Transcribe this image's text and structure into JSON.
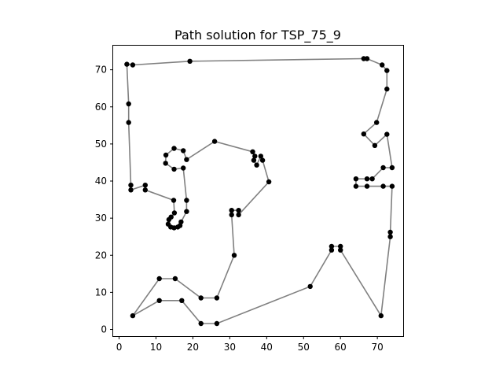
{
  "chart_data": {
    "type": "scatter",
    "title": "Path solution for TSP_75_9",
    "xlabel": "",
    "ylabel": "",
    "xlim": [
      -1.6,
      77.0
    ],
    "ylim": [
      -1.8,
      76.5
    ],
    "x_ticks": [
      0,
      10,
      20,
      30,
      40,
      50,
      60,
      70
    ],
    "y_ticks": [
      0,
      10,
      20,
      30,
      40,
      50,
      60,
      70
    ],
    "grid": false,
    "legend": "none",
    "colors": {
      "path": "#808080",
      "points": "#000000"
    },
    "path": [
      [
        19.2,
        72.3
      ],
      [
        66.3,
        73.0
      ],
      [
        67.2,
        73.0
      ],
      [
        71.3,
        71.3
      ],
      [
        72.6,
        69.8
      ],
      [
        72.6,
        64.8
      ],
      [
        69.8,
        55.8
      ],
      [
        66.3,
        52.7
      ],
      [
        69.3,
        49.6
      ],
      [
        72.6,
        52.6
      ],
      [
        74.0,
        43.6
      ],
      [
        71.6,
        43.6
      ],
      [
        68.6,
        40.6
      ],
      [
        67.2,
        40.6
      ],
      [
        64.2,
        40.6
      ],
      [
        64.2,
        38.6
      ],
      [
        67.2,
        38.6
      ],
      [
        71.6,
        38.6
      ],
      [
        74.0,
        38.6
      ],
      [
        73.5,
        26.2
      ],
      [
        73.5,
        25.0
      ],
      [
        71.0,
        3.7
      ],
      [
        60.0,
        21.4
      ],
      [
        60.0,
        22.4
      ],
      [
        57.6,
        22.4
      ],
      [
        57.6,
        21.4
      ],
      [
        51.8,
        11.6
      ],
      [
        26.5,
        1.6
      ],
      [
        22.2,
        1.6
      ],
      [
        17.0,
        7.8
      ],
      [
        10.9,
        7.8
      ],
      [
        3.7,
        3.7
      ],
      [
        10.9,
        13.7
      ],
      [
        15.2,
        13.7
      ],
      [
        22.2,
        8.5
      ],
      [
        26.5,
        8.5
      ],
      [
        31.2,
        20.0
      ],
      [
        30.5,
        30.9
      ],
      [
        30.5,
        32.1
      ],
      [
        32.4,
        32.1
      ],
      [
        32.4,
        30.9
      ],
      [
        40.6,
        39.8
      ],
      [
        38.9,
        45.6
      ],
      [
        38.4,
        46.7
      ],
      [
        37.3,
        44.3
      ],
      [
        36.5,
        45.6
      ],
      [
        36.8,
        46.7
      ],
      [
        36.2,
        47.9
      ],
      [
        25.9,
        50.7
      ],
      [
        18.3,
        45.8
      ],
      [
        17.4,
        48.2
      ],
      [
        14.9,
        48.8
      ],
      [
        12.7,
        47.0
      ],
      [
        12.6,
        44.8
      ],
      [
        14.9,
        43.2
      ],
      [
        17.4,
        43.5
      ],
      [
        18.3,
        34.8
      ],
      [
        18.3,
        31.8
      ],
      [
        16.8,
        29.0
      ],
      [
        16.5,
        28.0
      ],
      [
        15.9,
        27.6
      ],
      [
        14.9,
        27.4
      ],
      [
        14.0,
        27.6
      ],
      [
        13.3,
        28.4
      ],
      [
        13.5,
        29.6
      ],
      [
        14.1,
        30.3
      ],
      [
        15.0,
        31.4
      ],
      [
        14.8,
        34.8
      ],
      [
        7.1,
        37.6
      ],
      [
        7.1,
        38.9
      ],
      [
        3.2,
        37.6
      ],
      [
        3.2,
        38.9
      ],
      [
        2.6,
        55.8
      ],
      [
        2.6,
        60.8
      ],
      [
        2.1,
        71.5
      ],
      [
        3.7,
        71.3
      ],
      [
        19.2,
        72.3
      ]
    ]
  }
}
